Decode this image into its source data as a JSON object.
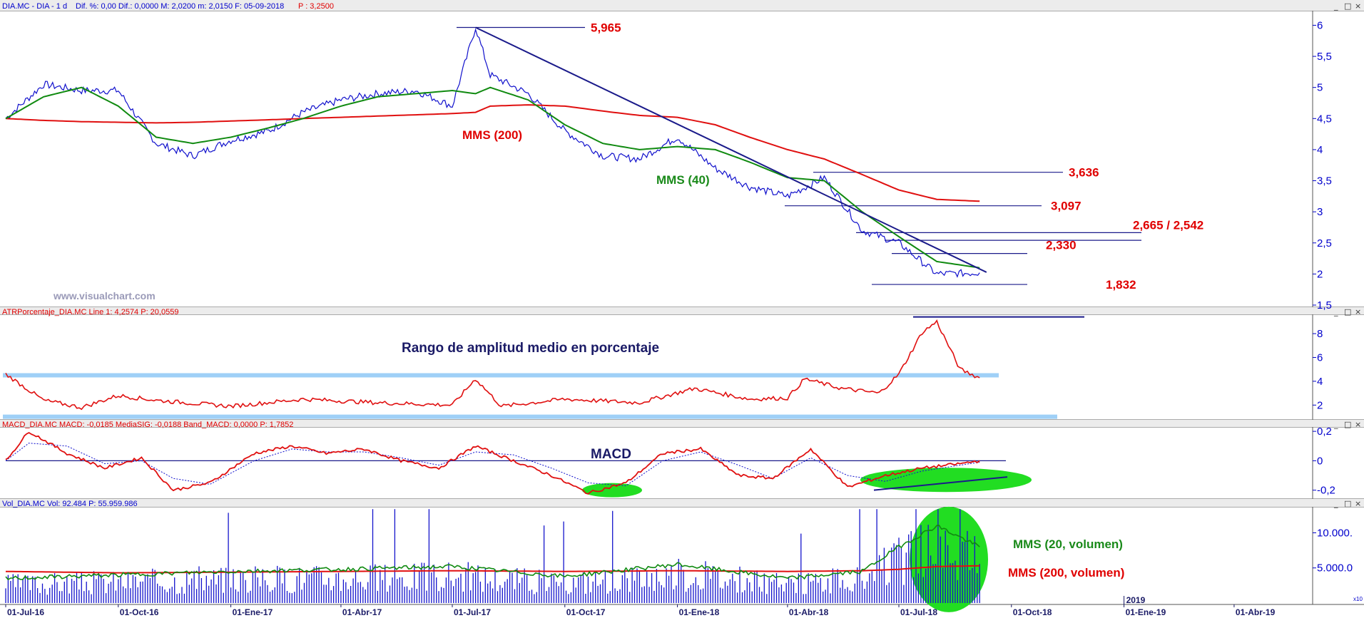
{
  "panels": {
    "price": {
      "header_name": "DIA.MC - DIA - 1 d",
      "header_stats": "Dif. %: 0,00  Dif.: 0,0000  M: 2,0200  m: 2,0150  F: 05-09-2018",
      "header_price": "P : 3,2500",
      "yticks": [
        "6",
        "5,5",
        "5",
        "4,5",
        "4",
        "3,5",
        "3",
        "2,5",
        "2",
        "1,5"
      ],
      "watermark": "www.visualchart.com"
    },
    "atr": {
      "header": "ATRPorcentaje_DIA.MC  Line 1: 4,2574  P: 20,0559",
      "yticks": [
        "8",
        "6",
        "4",
        "2"
      ],
      "annotation": "Rango de amplitud medio en porcentaje"
    },
    "macd": {
      "header": "MACD_DIA.MC  MACD: -0,0185  MediaSIG: -0,0188  Band_MACD: 0,0000  P: 1,7852",
      "yticks": [
        "0,2",
        "0",
        "-0,2"
      ],
      "annotation": "MACD"
    },
    "volume": {
      "header": "Vol_DIA.MC  Vol: 92.484  P: 55.959.986",
      "yticks": [
        "10.000.",
        "5.000.0"
      ],
      "axis_badge": "x10",
      "annotation_ma20": "MMS (20, volumen)",
      "annotation_ma200": "MMS (200, volumen)"
    }
  },
  "chart_data": {
    "type": "line",
    "x_axis_labels": [
      "01-Jul-16",
      "01-Oct-16",
      "01-Ene-17",
      "01-Abr-17",
      "01-Jul-17",
      "01-Oct-17",
      "01-Ene-18",
      "01-Abr-18",
      "01-Jul-18",
      "01-Oct-18",
      "01-Ene-19",
      "01-Abr-19"
    ],
    "year_marker": "2019",
    "price": {
      "x": [
        "2016-07-01",
        "2016-08-01",
        "2016-09-01",
        "2016-10-01",
        "2016-11-01",
        "2016-12-01",
        "2017-01-01",
        "2017-02-01",
        "2017-03-01",
        "2017-04-01",
        "2017-05-01",
        "2017-06-01",
        "2017-07-01",
        "2017-07-20",
        "2017-08-01",
        "2017-09-01",
        "2017-10-01",
        "2017-11-01",
        "2017-12-01",
        "2018-01-01",
        "2018-02-01",
        "2018-03-01",
        "2018-04-01",
        "2018-05-01",
        "2018-06-01",
        "2018-07-01",
        "2018-08-01",
        "2018-09-05"
      ],
      "close": [
        4.5,
        5.05,
        4.95,
        4.95,
        4.1,
        3.9,
        4.15,
        4.3,
        4.6,
        4.8,
        4.9,
        4.95,
        4.7,
        5.965,
        5.2,
        4.9,
        4.3,
        3.9,
        3.85,
        4.2,
        3.7,
        3.4,
        3.25,
        3.55,
        2.7,
        2.5,
        2.0,
        2.02
      ],
      "mms200": [
        4.5,
        4.47,
        4.45,
        4.44,
        4.43,
        4.44,
        4.46,
        4.48,
        4.5,
        4.52,
        4.54,
        4.56,
        4.58,
        4.6,
        4.7,
        4.72,
        4.7,
        4.62,
        4.55,
        4.52,
        4.4,
        4.2,
        4.0,
        3.85,
        3.6,
        3.35,
        3.2,
        3.17
      ],
      "mms40": [
        4.5,
        4.85,
        5.0,
        4.7,
        4.2,
        4.1,
        4.2,
        4.35,
        4.5,
        4.7,
        4.85,
        4.9,
        4.95,
        4.9,
        5.0,
        4.8,
        4.4,
        4.1,
        4.0,
        4.05,
        4.0,
        3.8,
        3.55,
        3.5,
        3.0,
        2.6,
        2.2,
        2.1
      ],
      "levels": [
        {
          "label": "5,965",
          "value": 5.965
        },
        {
          "label": "3,636",
          "value": 3.636
        },
        {
          "label": "3,097",
          "value": 3.097
        },
        {
          "label": "2,665 / 2,542",
          "value": 2.665,
          "value2": 2.542
        },
        {
          "label": "2,330",
          "value": 2.33
        },
        {
          "label": "1,832",
          "value": 1.832
        }
      ],
      "trendline": {
        "from": [
          "2017-07-20",
          5.965
        ],
        "to": [
          "2018-10-01",
          2.12
        ]
      },
      "annotations": {
        "mms200": "MMS (200)",
        "mms40": "MMS (40)"
      },
      "ylim": [
        1.5,
        6.2
      ]
    },
    "atr_percent": {
      "x": [
        "2016-07-01",
        "2016-08-01",
        "2016-09-01",
        "2016-10-01",
        "2016-11-01",
        "2017-01-01",
        "2017-03-01",
        "2017-05-01",
        "2017-07-01",
        "2017-07-20",
        "2017-08-10",
        "2017-10-01",
        "2017-12-01",
        "2018-01-15",
        "2018-03-01",
        "2018-04-01",
        "2018-04-15",
        "2018-05-15",
        "2018-06-15",
        "2018-07-01",
        "2018-07-20",
        "2018-08-01",
        "2018-08-20",
        "2018-09-05"
      ],
      "values": [
        4.6,
        2.4,
        1.8,
        2.8,
        2.4,
        1.9,
        2.5,
        2.2,
        2.0,
        4.2,
        1.9,
        2.5,
        2.2,
        3.4,
        2.5,
        2.6,
        4.2,
        3.4,
        3.0,
        4.6,
        8.1,
        9.0,
        5.0,
        4.3
      ],
      "bands": [
        4.5,
        1.5
      ],
      "ylim": [
        1,
        9.5
      ]
    },
    "macd": {
      "x": [
        "2016-07-01",
        "2016-07-20",
        "2016-08-20",
        "2016-09-20",
        "2016-10-20",
        "2016-11-15",
        "2016-12-15",
        "2017-01-20",
        "2017-02-20",
        "2017-03-20",
        "2017-04-20",
        "2017-05-20",
        "2017-06-20",
        "2017-07-20",
        "2017-08-20",
        "2017-09-20",
        "2017-10-20",
        "2017-11-20",
        "2017-12-20",
        "2018-01-20",
        "2018-02-20",
        "2018-03-20",
        "2018-04-20",
        "2018-05-20",
        "2018-06-20",
        "2018-07-20",
        "2018-08-20",
        "2018-09-05"
      ],
      "macd": [
        0.0,
        0.2,
        0.05,
        -0.05,
        0.02,
        -0.2,
        -0.15,
        0.05,
        0.1,
        0.05,
        0.08,
        0.0,
        -0.05,
        0.1,
        0.0,
        -0.1,
        -0.22,
        -0.15,
        0.05,
        0.08,
        -0.1,
        -0.12,
        0.08,
        -0.18,
        -0.1,
        -0.05,
        -0.02,
        0.0
      ],
      "signal": [
        0.0,
        0.12,
        0.1,
        -0.02,
        0.0,
        -0.12,
        -0.16,
        0.0,
        0.08,
        0.06,
        0.06,
        0.02,
        -0.03,
        0.06,
        0.04,
        -0.05,
        -0.15,
        -0.17,
        0.0,
        0.06,
        -0.03,
        -0.12,
        0.02,
        -0.1,
        -0.14,
        -0.07,
        -0.03,
        -0.01
      ],
      "zero_line": 0,
      "ylim": [
        -0.25,
        0.22
      ]
    },
    "volume": {
      "x": [
        "2016-07-01",
        "2016-10-01",
        "2017-01-01",
        "2017-04-01",
        "2017-07-01",
        "2017-10-01",
        "2018-01-01",
        "2018-04-01",
        "2018-06-01",
        "2018-07-01",
        "2018-08-01",
        "2018-09-05"
      ],
      "ma20": [
        3500,
        4000,
        4500,
        4800,
        5200,
        3800,
        5500,
        3500,
        4500,
        8000,
        11000,
        8000
      ],
      "ma200": [
        4500,
        4300,
        4400,
        4500,
        4600,
        4500,
        4600,
        4500,
        4600,
        4800,
        5200,
        5300
      ],
      "ylim": [
        0,
        13500
      ]
    }
  }
}
